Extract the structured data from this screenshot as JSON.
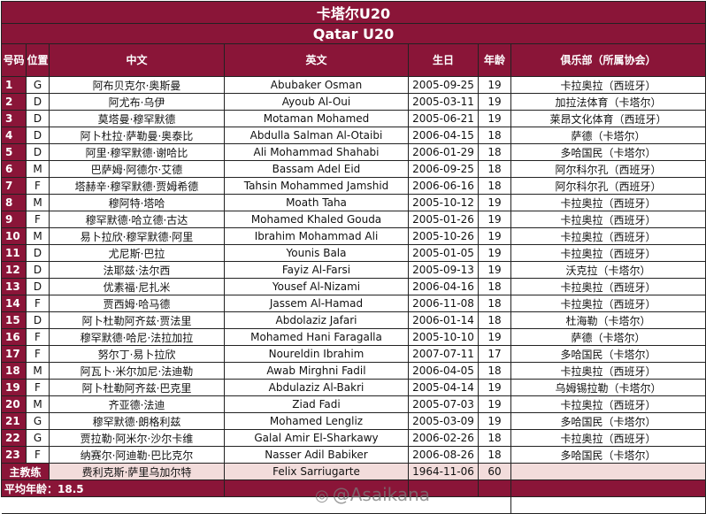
{
  "title_cn": "卡塔尔U20",
  "title_en": "Qatar U20",
  "headers": {
    "num": "号码",
    "pos": "位置",
    "cn": "中文",
    "en": "英文",
    "dob": "生日",
    "age": "年龄",
    "club": "俱乐部（所属协会）"
  },
  "players": [
    {
      "num": "1",
      "pos": "G",
      "cn": "阿布贝克尔·奥斯曼",
      "en": "Abubaker Osman",
      "dob": "2005-09-25",
      "age": "19",
      "club": "卡拉奥拉（西班牙）"
    },
    {
      "num": "2",
      "pos": "D",
      "cn": "阿尤布·乌伊",
      "en": "Ayoub Al-Oui",
      "dob": "2005-03-11",
      "age": "19",
      "club": "加拉法体育（卡塔尔）"
    },
    {
      "num": "3",
      "pos": "D",
      "cn": "莫塔曼·穆罕默德",
      "en": "Motaman Mohamed",
      "dob": "2005-06-21",
      "age": "19",
      "club": "莱昂文化体育（西班牙）"
    },
    {
      "num": "4",
      "pos": "D",
      "cn": "阿卜杜拉·萨勒曼·奥泰比",
      "en": "Abdulla Salman Al-Otaibi",
      "dob": "2006-04-15",
      "age": "18",
      "club": "萨德（卡塔尔）"
    },
    {
      "num": "5",
      "pos": "D",
      "cn": "阿里·穆罕默德·谢哈比",
      "en": "Ali Mohammad Shahabi",
      "dob": "2006-01-29",
      "age": "18",
      "club": "多哈国民（卡塔尔）"
    },
    {
      "num": "6",
      "pos": "M",
      "cn": "巴萨姆·阿德尔·艾德",
      "en": "Bassam Adel Eid",
      "dob": "2006-09-25",
      "age": "18",
      "club": "阿尔科尔孔（西班牙）"
    },
    {
      "num": "7",
      "pos": "F",
      "cn": "塔赫辛·穆罕默德·贾姆希德",
      "en": "Tahsin Mohammed Jamshid",
      "dob": "2006-06-16",
      "age": "18",
      "club": "阿尔科尔孔（西班牙）"
    },
    {
      "num": "8",
      "pos": "M",
      "cn": "穆阿特·塔哈",
      "en": "Moath Taha",
      "dob": "2005-10-12",
      "age": "19",
      "club": "卡拉奥拉（西班牙）"
    },
    {
      "num": "9",
      "pos": "F",
      "cn": "穆罕默德·哈立德·古达",
      "en": "Mohamed Khaled Gouda",
      "dob": "2005-01-26",
      "age": "19",
      "club": "卡拉奥拉（西班牙）"
    },
    {
      "num": "10",
      "pos": "M",
      "cn": "易卜拉欣·穆罕默德·阿里",
      "en": "Ibrahim Mohammad Ali",
      "dob": "2005-10-26",
      "age": "19",
      "club": "卡拉奥拉（西班牙）"
    },
    {
      "num": "11",
      "pos": "D",
      "cn": "尤尼斯·巴拉",
      "en": "Younis Bala",
      "dob": "2005-01-05",
      "age": "19",
      "club": "卡拉奥拉（西班牙）"
    },
    {
      "num": "12",
      "pos": "D",
      "cn": "法耶兹·法尔西",
      "en": "Fayiz Al-Farsi",
      "dob": "2005-09-13",
      "age": "19",
      "club": "沃克拉（卡塔尔）"
    },
    {
      "num": "13",
      "pos": "D",
      "cn": "优素福·尼扎米",
      "en": "Yousef Al-Nizami",
      "dob": "2006-04-16",
      "age": "18",
      "club": "卡拉奥拉（西班牙）"
    },
    {
      "num": "14",
      "pos": "F",
      "cn": "贾西姆·哈马德",
      "en": "Jassem Al-Hamad",
      "dob": "2006-11-08",
      "age": "18",
      "club": "卡拉奥拉（西班牙）"
    },
    {
      "num": "15",
      "pos": "D",
      "cn": "阿卜杜勒阿齐兹·贾法里",
      "en": "Abdolaziz Jafari",
      "dob": "2006-01-14",
      "age": "18",
      "club": "杜海勒（卡塔尔）"
    },
    {
      "num": "16",
      "pos": "F",
      "cn": "穆罕默德·哈尼·法拉加拉",
      "en": "Mohamed Hani Faragalla",
      "dob": "2005-10-10",
      "age": "19",
      "club": "萨德（卡塔尔）"
    },
    {
      "num": "17",
      "pos": "F",
      "cn": "努尔丁·易卜拉欣",
      "en": "Noureldin Ibrahim",
      "dob": "2007-07-11",
      "age": "17",
      "club": "多哈国民（卡塔尔）"
    },
    {
      "num": "18",
      "pos": "M",
      "cn": "阿瓦卜·米尔加尼·法迪勒",
      "en": "Awab Mirghni Fadil",
      "dob": "2006-04-05",
      "age": "18",
      "club": "卡拉奥拉（西班牙）"
    },
    {
      "num": "19",
      "pos": "F",
      "cn": "阿卜杜勒阿齐兹·巴克里",
      "en": "Abdulaziz Al-Bakri",
      "dob": "2005-04-14",
      "age": "19",
      "club": "乌姆锡拉勒（卡塔尔）"
    },
    {
      "num": "20",
      "pos": "M",
      "cn": "齐亚德·法迪",
      "en": "Ziad Fadi",
      "dob": "2005-07-03",
      "age": "19",
      "club": "卡拉奥拉（西班牙）"
    },
    {
      "num": "21",
      "pos": "G",
      "cn": "穆罕默德·朗格利兹",
      "en": "Mohamed Lengliz",
      "dob": "2005-03-09",
      "age": "19",
      "club": "多哈国民（卡塔尔）"
    },
    {
      "num": "22",
      "pos": "G",
      "cn": "贾拉勒·阿米尔·沙尔卡维",
      "en": "Galal Amir El-Sharkawy",
      "dob": "2006-02-26",
      "age": "18",
      "club": "卡拉奥拉（西班牙）"
    },
    {
      "num": "23",
      "pos": "F",
      "cn": "纳赛尔·阿迪勒·巴比克尔",
      "en": "Nasser Adil Babiker",
      "dob": "2006-08-26",
      "age": "18",
      "club": "多哈国民（卡塔尔）"
    }
  ],
  "coach": {
    "label": "主教练",
    "cn": "费利克斯·萨里乌加尔特",
    "en": "Felix Sarriugarte",
    "dob": "1964-11-06",
    "age": "60",
    "club": ""
  },
  "average_age": "平均年龄：18.5",
  "watermark": "@Asaikana",
  "colors": {
    "maroon": "#8a1538",
    "coach_row": "#f2dcdb"
  }
}
